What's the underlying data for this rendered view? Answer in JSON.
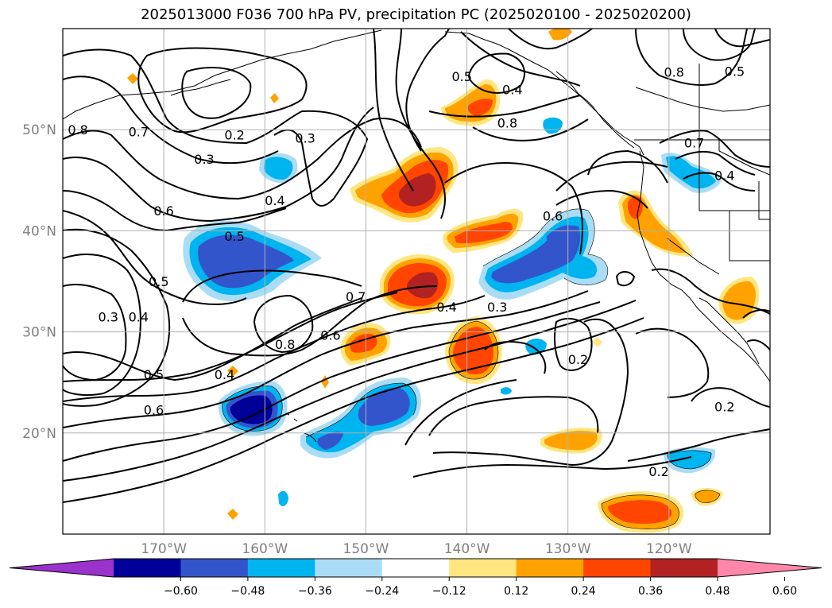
{
  "title": "2025013000 F036 700 hPa PV, precipitation PC (2025020100 - 2025020200)",
  "map": {
    "lon_range": [
      -180,
      -110
    ],
    "lat_range": [
      10,
      60
    ],
    "lon_ticks": [
      {
        "value": -170,
        "label": "170°W"
      },
      {
        "value": -160,
        "label": "160°W"
      },
      {
        "value": -150,
        "label": "150°W"
      },
      {
        "value": -140,
        "label": "140°W"
      },
      {
        "value": -130,
        "label": "130°W"
      },
      {
        "value": -120,
        "label": "120°W"
      }
    ],
    "lat_ticks": [
      {
        "value": 20,
        "label": "20°N"
      },
      {
        "value": 30,
        "label": "30°N"
      },
      {
        "value": 40,
        "label": "40°N"
      },
      {
        "value": 50,
        "label": "50°N"
      }
    ],
    "grid": true
  },
  "contour_labels": [
    {
      "text": "0.2",
      "lon": -163.0,
      "lat": 49.5
    },
    {
      "text": "0.3",
      "lon": -166.0,
      "lat": 47.1
    },
    {
      "text": "0.3",
      "lon": -156.0,
      "lat": 49.2
    },
    {
      "text": "0.8",
      "lon": -178.5,
      "lat": 50.0
    },
    {
      "text": "0.7",
      "lon": -172.5,
      "lat": 49.8
    },
    {
      "text": "0.4",
      "lon": -159.0,
      "lat": 43.0
    },
    {
      "text": "0.6",
      "lon": -170.0,
      "lat": 42.0
    },
    {
      "text": "0.5",
      "lon": -163.0,
      "lat": 39.5
    },
    {
      "text": "0.5",
      "lon": -170.5,
      "lat": 35.0
    },
    {
      "text": "0.4",
      "lon": -172.5,
      "lat": 31.5
    },
    {
      "text": "0.3",
      "lon": -175.5,
      "lat": 31.5
    },
    {
      "text": "0.7",
      "lon": -151.0,
      "lat": 33.5
    },
    {
      "text": "0.8",
      "lon": -158.0,
      "lat": 28.8
    },
    {
      "text": "0.6",
      "lon": -153.5,
      "lat": 29.7
    },
    {
      "text": "0.4",
      "lon": -142.0,
      "lat": 32.5
    },
    {
      "text": "0.3",
      "lon": -137.0,
      "lat": 32.5
    },
    {
      "text": "0.4",
      "lon": -164.0,
      "lat": 25.8
    },
    {
      "text": "0.5",
      "lon": -171.0,
      "lat": 25.8
    },
    {
      "text": "0.6",
      "lon": -171.0,
      "lat": 22.3
    },
    {
      "text": "0.5",
      "lon": -140.5,
      "lat": 55.3
    },
    {
      "text": "0.4",
      "lon": -135.5,
      "lat": 54.0
    },
    {
      "text": "0.8",
      "lon": -136.0,
      "lat": 50.7
    },
    {
      "text": "0.6",
      "lon": -131.5,
      "lat": 41.5
    },
    {
      "text": "0.2",
      "lon": -129.0,
      "lat": 27.3
    },
    {
      "text": "0.7",
      "lon": -117.5,
      "lat": 48.7
    },
    {
      "text": "0.4",
      "lon": -114.5,
      "lat": 45.5
    },
    {
      "text": "0.8",
      "lon": -119.5,
      "lat": 55.7
    },
    {
      "text": "0.5",
      "lon": -113.5,
      "lat": 55.8
    },
    {
      "text": "0.2",
      "lon": -114.5,
      "lat": 22.6
    },
    {
      "text": "0.2",
      "lon": -121.0,
      "lat": 16.2
    }
  ],
  "colorbar": {
    "ticks": [
      "−0.60",
      "−0.48",
      "−0.36",
      "−0.24",
      "−0.12",
      "0.12",
      "0.24",
      "0.36",
      "0.48",
      "0.60"
    ],
    "colors": [
      "#9933cc",
      "#000099",
      "#3355cc",
      "#00b4f0",
      "#aaddf5",
      "#ffffff",
      "#ffe680",
      "#ffa200",
      "#ff4500",
      "#b22222",
      "#ff88aa"
    ]
  }
}
